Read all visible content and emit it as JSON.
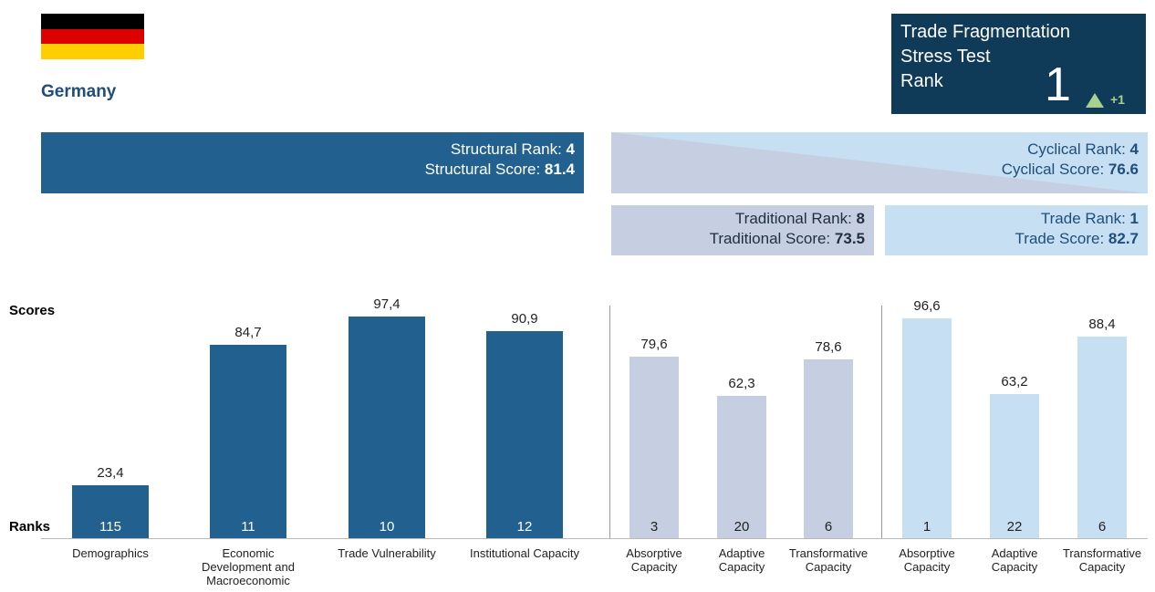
{
  "header": {
    "country": "Germany"
  },
  "rank_box": {
    "title_lines": [
      "Trade Fragmentation",
      "Stress Test",
      "Rank"
    ],
    "rank": 1,
    "change": "+1"
  },
  "banners": {
    "structural": {
      "rank_label": "Structural Rank:",
      "rank": 4,
      "score_label": "Structural Score:",
      "score": 81.4
    },
    "cyclical": {
      "rank_label": "Cyclical Rank:",
      "rank": 4,
      "score_label": "Cyclical Score:",
      "score": 76.6
    },
    "traditional": {
      "rank_label": "Traditional Rank:",
      "rank": 8,
      "score_label": "Traditional Score:",
      "score": 73.5
    },
    "trade": {
      "rank_label": "Trade Rank:",
      "rank": 1,
      "score_label": "Trade Score:",
      "score": 82.7
    }
  },
  "labels": {
    "scores": "Scores",
    "ranks": "Ranks"
  },
  "chart_data": [
    {
      "type": "bar",
      "color": "#22618f",
      "ylim": [
        0,
        100
      ],
      "categories": [
        "Demographics",
        "Economic Development and Macroeconomic",
        "Trade Vulnerability",
        "Institutional Capacity"
      ],
      "values": [
        23.4,
        84.7,
        97.4,
        90.9
      ],
      "value_labels": [
        "23,4",
        "84,7",
        "97,4",
        "90,9"
      ],
      "ranks": [
        115,
        11,
        10,
        12
      ]
    },
    {
      "type": "bar",
      "color": "#c5cfe1",
      "ylim": [
        0,
        100
      ],
      "categories": [
        "Absorptive Capacity",
        "Adaptive Capacity",
        "Transformative Capacity"
      ],
      "values": [
        79.6,
        62.3,
        78.6
      ],
      "value_labels": [
        "79,6",
        "62,3",
        "78,6"
      ],
      "ranks": [
        3,
        20,
        6
      ]
    },
    {
      "type": "bar",
      "color": "#c6dff3",
      "ylim": [
        0,
        100
      ],
      "categories": [
        "Absorptive Capacity",
        "Adaptive Capacity",
        "Transformative Capacity"
      ],
      "values": [
        96.6,
        63.2,
        88.4
      ],
      "value_labels": [
        "96,6",
        "63,2",
        "88,4"
      ],
      "ranks": [
        1,
        22,
        6
      ]
    }
  ]
}
